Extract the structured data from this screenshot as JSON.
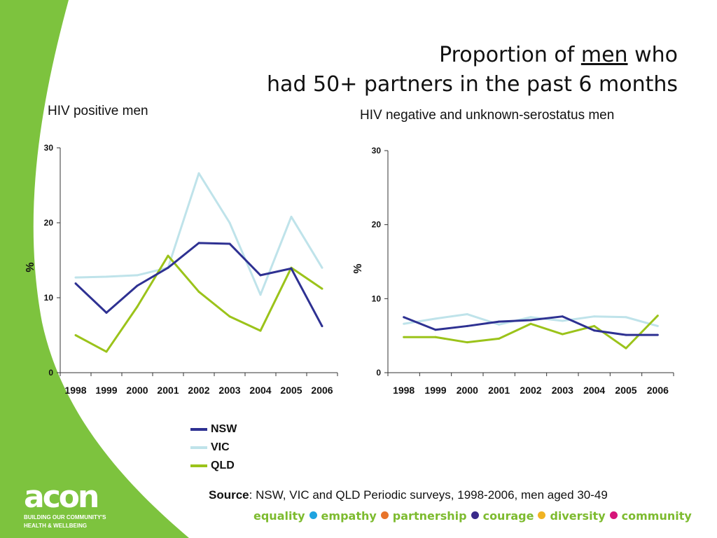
{
  "slide": {
    "title_line1_pre": "Proportion of ",
    "title_line1_emph": "men",
    "title_line1_post": " who",
    "title_line2": "had 50+ partners in the past 6 months",
    "source_label": "Source",
    "source_text": ": NSW, VIC and QLD Periodic surveys, 1998-2006, men aged 30-49",
    "logo_text": "acon",
    "logo_tagline_1": "BUILDING OUR COMMUNITY'S",
    "logo_tagline_2": "HEALTH & WELLBEING",
    "values": [
      {
        "label": "equality",
        "dot": "#1fa3e0"
      },
      {
        "label": "empathy",
        "dot": "#e8742a"
      },
      {
        "label": "partnership",
        "dot": "#3a2a8a"
      },
      {
        "label": "courage",
        "dot": "#f0b323"
      },
      {
        "label": "diversity",
        "dot": "#d6157a"
      },
      {
        "label": "community",
        "dot": null
      }
    ],
    "colors": {
      "brand_green": "#7dc33e",
      "values_text": "#7dbb2f"
    }
  },
  "chart_data": [
    {
      "type": "line",
      "title": "HIV positive men",
      "xlabel": "",
      "ylabel": "%",
      "categories": [
        "1998",
        "1999",
        "2000",
        "2001",
        "2002",
        "2003",
        "2004",
        "2005",
        "2006"
      ],
      "ylim": [
        0,
        30
      ],
      "yticks": [
        0,
        10,
        20,
        30
      ],
      "series": [
        {
          "name": "NSW",
          "color": "#2e3192",
          "values": [
            11.9,
            8.0,
            11.6,
            14.0,
            17.3,
            17.2,
            13.0,
            13.9,
            6.2
          ]
        },
        {
          "name": "VIC",
          "color": "#bfe3ea",
          "values": [
            12.7,
            12.8,
            13.0,
            14.0,
            26.6,
            20.0,
            10.4,
            20.8,
            14.0
          ]
        },
        {
          "name": "QLD",
          "color": "#9bc31a",
          "values": [
            5.0,
            2.8,
            8.8,
            15.6,
            10.8,
            7.5,
            5.6,
            14.0,
            11.2
          ]
        }
      ]
    },
    {
      "type": "line",
      "title": "HIV negative and unknown-serostatus men",
      "xlabel": "",
      "ylabel": "%",
      "categories": [
        "1998",
        "1999",
        "2000",
        "2001",
        "2002",
        "2003",
        "2004",
        "2005",
        "2006"
      ],
      "ylim": [
        0,
        30
      ],
      "yticks": [
        0,
        10,
        20,
        30
      ],
      "series": [
        {
          "name": "NSW",
          "color": "#2e3192",
          "values": [
            7.5,
            5.8,
            6.3,
            6.9,
            7.1,
            7.6,
            5.7,
            5.1,
            5.1
          ]
        },
        {
          "name": "VIC",
          "color": "#bfe3ea",
          "values": [
            6.6,
            7.3,
            7.9,
            6.5,
            7.5,
            7.0,
            7.6,
            7.5,
            6.3
          ]
        },
        {
          "name": "QLD",
          "color": "#9bc31a",
          "values": [
            4.8,
            4.8,
            4.1,
            4.6,
            6.6,
            5.2,
            6.3,
            3.3,
            7.7
          ]
        }
      ]
    }
  ]
}
